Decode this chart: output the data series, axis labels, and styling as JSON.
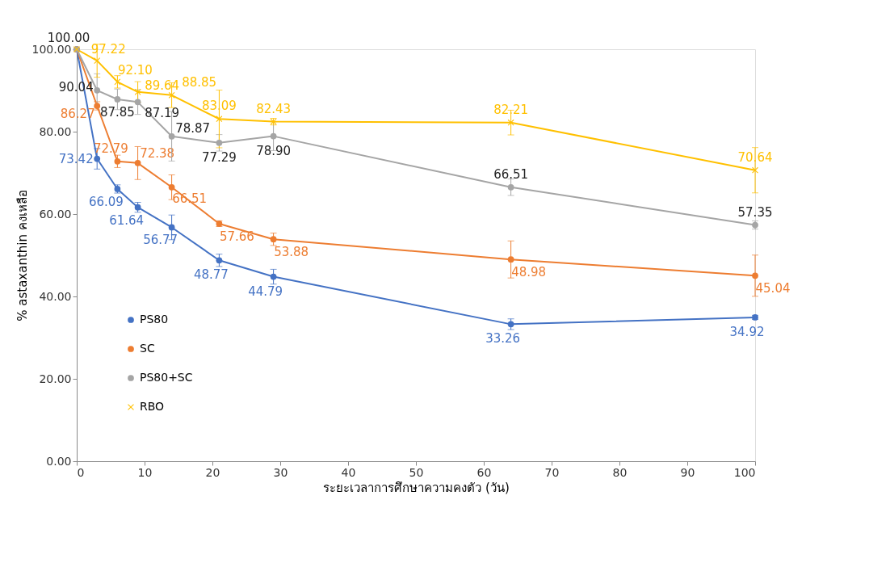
{
  "chart_data": {
    "type": "line",
    "xlabel": "ระยะเวลาการศึกษาความคงตัว (วัน)",
    "ylabel": "% astaxanthin คงเหลือ",
    "x": [
      0,
      3,
      6,
      9,
      14,
      21,
      29,
      64,
      100
    ],
    "xlim": [
      0,
      100
    ],
    "xticks": [
      0,
      10,
      20,
      30,
      40,
      50,
      60,
      70,
      80,
      90,
      100
    ],
    "ylim": [
      0,
      100
    ],
    "yticks": [
      {
        "value": 0,
        "label": "0.00"
      },
      {
        "value": 20,
        "label": "20.00"
      },
      {
        "value": 40,
        "label": "40.00"
      },
      {
        "value": 60,
        "label": "60.00"
      },
      {
        "value": 80,
        "label": "80.00"
      },
      {
        "value": 100,
        "label": "100.00"
      }
    ],
    "grid": false,
    "legend": "bottom left",
    "series": [
      {
        "name": "PS80",
        "color": "#4472c4",
        "marker": "circle",
        "values": [
          100,
          73.42,
          66.09,
          61.64,
          56.77,
          48.77,
          44.79,
          33.26,
          34.92
        ],
        "value_labels": [
          null,
          "73.42",
          "66.09",
          "61.64",
          "56.77",
          "48.77",
          "44.79",
          "33.26",
          "34.92"
        ],
        "errors": [
          null,
          2.5,
          1,
          1.2,
          3,
          1.5,
          1.8,
          1.3,
          0.5
        ]
      },
      {
        "name": "SC",
        "color": "#ed7d31",
        "marker": "circle",
        "values": [
          100,
          86.27,
          72.79,
          72.38,
          66.51,
          57.66,
          53.88,
          48.98,
          45.04
        ],
        "value_labels": [
          null,
          "86.27",
          "72.79",
          "72.38",
          "66.51",
          "57.66",
          "53.88",
          "48.98",
          "45.04"
        ],
        "errors": [
          null,
          1,
          1.5,
          4,
          3,
          0.7,
          1.5,
          4.5,
          5
        ]
      },
      {
        "name": "PS80+SC",
        "color": "#a5a5a5",
        "marker": "circle",
        "values": [
          100,
          90.04,
          87.85,
          87.19,
          78.87,
          77.29,
          78.9,
          66.51,
          57.35
        ],
        "value_labels": [
          "100.00",
          "90.04",
          "87.85",
          "87.19",
          "78.87",
          "77.29",
          "78.90",
          "66.51",
          "57.35"
        ],
        "errors": [
          null,
          4,
          2.5,
          3,
          6,
          2,
          3.5,
          2,
          1
        ]
      },
      {
        "name": "RBO",
        "color": "#ffc000",
        "marker": "cross",
        "values": [
          100,
          97.22,
          92.1,
          89.64,
          88.85,
          83.09,
          82.43,
          82.21,
          70.64
        ],
        "value_labels": [
          null,
          "97.22",
          "92.10",
          "89.64",
          "88.85",
          "83.09",
          "82.43",
          "82.21",
          "70.64"
        ],
        "errors": [
          null,
          4,
          1.5,
          2.5,
          3,
          7,
          0.8,
          3,
          5.5
        ]
      }
    ]
  }
}
